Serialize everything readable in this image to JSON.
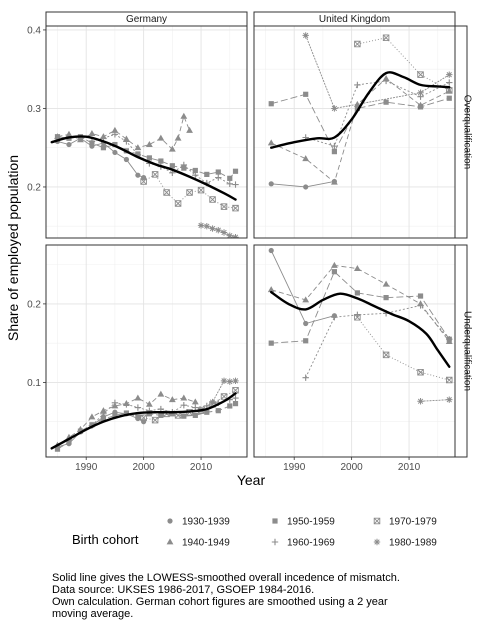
{
  "chart_data": {
    "type": "line",
    "facets": {
      "columns": [
        "Germany",
        "United Kingdom"
      ],
      "rows": [
        "Overqualification",
        "Underqualification"
      ]
    },
    "xlabel": "Year",
    "ylabel": "Share of employed population",
    "xlim": [
      1983,
      2018
    ],
    "x_ticks": [
      1990,
      2000,
      2010
    ],
    "y_ticks_top": [
      0.2,
      0.3,
      0.4
    ],
    "y_ticks_bottom": [
      0.1,
      0.2
    ],
    "ylim_top": [
      0.135,
      0.405
    ],
    "ylim_bottom": [
      0.005,
      0.275
    ],
    "legend": {
      "title": "Birth cohort",
      "placement": "bottom",
      "entries": [
        {
          "label": "1930-1939",
          "shape": "circle"
        },
        {
          "label": "1940-1949",
          "shape": "triangle"
        },
        {
          "label": "1950-1959",
          "shape": "square"
        },
        {
          "label": "1960-1969",
          "shape": "plus"
        },
        {
          "label": "1970-1979",
          "shape": "boxed-x"
        },
        {
          "label": "1980-1989",
          "shape": "asterisk"
        }
      ]
    },
    "panels": [
      {
        "country": "Germany",
        "measure": "Overqualification",
        "lowess": {
          "x": [
            1984,
            1987,
            1990,
            1993,
            1996,
            1999,
            2002,
            2005,
            2008,
            2011,
            2014,
            2016
          ],
          "y": [
            0.257,
            0.263,
            0.264,
            0.258,
            0.249,
            0.238,
            0.229,
            0.222,
            0.213,
            0.203,
            0.192,
            0.184
          ]
        },
        "cohorts": [
          {
            "label": "1930-1939",
            "x": [
              1985,
              1987,
              1989,
              1991,
              1993,
              1995,
              1997,
              1999,
              2000
            ],
            "y": [
              0.258,
              0.254,
              0.262,
              0.252,
              0.256,
              0.244,
              0.235,
              0.215,
              0.212
            ]
          },
          {
            "label": "1940-1949",
            "x": [
              1985,
              1987,
              1989,
              1991,
              1993,
              1995,
              1997,
              1999,
              2001,
              2003,
              2005,
              2006,
              2007,
              2008
            ],
            "y": [
              0.264,
              0.267,
              0.26,
              0.268,
              0.264,
              0.272,
              0.261,
              0.25,
              0.254,
              0.262,
              0.248,
              0.262,
              0.29,
              0.272
            ]
          },
          {
            "label": "1950-1959",
            "x": [
              1985,
              1987,
              1989,
              1991,
              1993,
              1995,
              1997,
              1999,
              2001,
              2003,
              2005,
              2007,
              2009,
              2011,
              2013,
              2015,
              2016
            ],
            "y": [
              0.264,
              0.262,
              0.264,
              0.256,
              0.25,
              0.254,
              0.246,
              0.242,
              0.237,
              0.233,
              0.227,
              0.224,
              0.221,
              0.216,
              0.219,
              0.211,
              0.22
            ]
          },
          {
            "label": "1960-1969",
            "x": [
              1991,
              1993,
              1995,
              1997,
              1999,
              2001,
              2003,
              2005,
              2007,
              2009,
              2011,
              2013,
              2015,
              2016
            ],
            "y": [
              0.258,
              0.262,
              0.267,
              0.258,
              0.241,
              0.23,
              0.226,
              0.218,
              0.228,
              0.215,
              0.205,
              0.212,
              0.204,
              0.203
            ]
          },
          {
            "label": "1970-1979",
            "x": [
              2000,
              2002,
              2004,
              2006,
              2008,
              2010,
              2012,
              2014,
              2016
            ],
            "y": [
              0.207,
              0.216,
              0.193,
              0.179,
              0.193,
              0.196,
              0.184,
              0.175,
              0.173
            ]
          },
          {
            "label": "1980-1989",
            "x": [
              2010,
              2011,
              2012,
              2013,
              2014,
              2015,
              2016
            ],
            "y": [
              0.151,
              0.15,
              0.147,
              0.145,
              0.142,
              0.138,
              0.136
            ]
          }
        ]
      },
      {
        "country": "United Kingdom",
        "measure": "Overqualification",
        "lowess": {
          "x": [
            1986,
            1990,
            1994,
            1997,
            2000,
            2003,
            2006,
            2009,
            2012,
            2015,
            2017
          ],
          "y": [
            0.25,
            0.257,
            0.262,
            0.263,
            0.286,
            0.32,
            0.345,
            0.34,
            0.33,
            0.328,
            0.327
          ]
        },
        "cohorts": [
          {
            "label": "1930-1939",
            "x": [
              1986,
              1992,
              1997
            ],
            "y": [
              0.204,
              0.2,
              0.207
            ]
          },
          {
            "label": "1940-1949",
            "x": [
              1986,
              1992,
              1997,
              2001,
              2006,
              2012,
              2017
            ],
            "y": [
              0.256,
              0.236,
              0.206,
              0.305,
              0.338,
              0.304,
              0.322
            ]
          },
          {
            "label": "1950-1959",
            "x": [
              1986,
              1992,
              1997,
              2001,
              2006,
              2012,
              2017
            ],
            "y": [
              0.306,
              0.318,
              0.245,
              0.3,
              0.308,
              0.302,
              0.313
            ]
          },
          {
            "label": "1960-1969",
            "x": [
              1992,
              1997,
              2001,
              2006,
              2012,
              2017
            ],
            "y": [
              0.263,
              0.252,
              0.33,
              0.335,
              0.315,
              0.333
            ]
          },
          {
            "label": "1970-1979",
            "x": [
              2001,
              2006,
              2012,
              2017
            ],
            "y": [
              0.382,
              0.39,
              0.343,
              0.323
            ]
          },
          {
            "label": "1980-1989",
            "x": [
              1992,
              1997,
              2012,
              2017
            ],
            "y": [
              0.393,
              0.3,
              0.32,
              0.343
            ]
          }
        ]
      },
      {
        "country": "Germany",
        "measure": "Underqualification",
        "lowess": {
          "x": [
            1984,
            1987,
            1990,
            1993,
            1996,
            1999,
            2002,
            2005,
            2008,
            2011,
            2014,
            2016
          ],
          "y": [
            0.016,
            0.028,
            0.04,
            0.05,
            0.057,
            0.061,
            0.062,
            0.062,
            0.063,
            0.066,
            0.076,
            0.086
          ]
        },
        "cohorts": [
          {
            "label": "1930-1939",
            "x": [
              1985,
              1987,
              1989,
              1991,
              1993,
              1995,
              1997,
              1999,
              2000
            ],
            "y": [
              0.018,
              0.022,
              0.037,
              0.045,
              0.056,
              0.062,
              0.06,
              0.054,
              0.05
            ]
          },
          {
            "label": "1940-1949",
            "x": [
              1985,
              1987,
              1989,
              1991,
              1993,
              1995,
              1997,
              1999,
              2001,
              2003,
              2005,
              2007,
              2009
            ],
            "y": [
              0.02,
              0.03,
              0.04,
              0.056,
              0.064,
              0.07,
              0.073,
              0.08,
              0.072,
              0.085,
              0.078,
              0.08,
              0.075
            ]
          },
          {
            "label": "1950-1959",
            "x": [
              1985,
              1987,
              1989,
              1991,
              1993,
              1995,
              1997,
              1999,
              2001,
              2003,
              2005,
              2007,
              2009,
              2011,
              2013,
              2015,
              2016
            ],
            "y": [
              0.015,
              0.024,
              0.038,
              0.046,
              0.053,
              0.058,
              0.061,
              0.056,
              0.06,
              0.058,
              0.06,
              0.057,
              0.058,
              0.062,
              0.064,
              0.07,
              0.073
            ]
          },
          {
            "label": "1960-1969",
            "x": [
              1991,
              1993,
              1995,
              1997,
              1999,
              2001,
              2003,
              2005,
              2007,
              2009,
              2011,
              2013,
              2015,
              2016
            ],
            "y": [
              0.045,
              0.06,
              0.074,
              0.072,
              0.068,
              0.064,
              0.066,
              0.062,
              0.071,
              0.068,
              0.07,
              0.074,
              0.078,
              0.08
            ]
          },
          {
            "label": "1970-1979",
            "x": [
              2000,
              2002,
              2004,
              2006,
              2008,
              2010,
              2012,
              2014,
              2016
            ],
            "y": [
              0.055,
              0.052,
              0.06,
              0.058,
              0.062,
              0.064,
              0.072,
              0.082,
              0.09
            ]
          },
          {
            "label": "1980-1989",
            "x": [
              2010,
              2012,
              2014,
              2015,
              2016
            ],
            "y": [
              0.065,
              0.075,
              0.102,
              0.101,
              0.102
            ]
          }
        ]
      },
      {
        "country": "United Kingdom",
        "measure": "Underqualification",
        "lowess": {
          "x": [
            1986,
            1989,
            1992,
            1995,
            1998,
            2001,
            2004,
            2007,
            2010,
            2013,
            2015,
            2017
          ],
          "y": [
            0.215,
            0.2,
            0.193,
            0.205,
            0.213,
            0.207,
            0.197,
            0.187,
            0.178,
            0.162,
            0.141,
            0.12
          ]
        },
        "cohorts": [
          {
            "label": "1930-1939",
            "x": [
              1986,
              1992,
              1997
            ],
            "y": [
              0.268,
              0.175,
              0.185
            ]
          },
          {
            "label": "1940-1949",
            "x": [
              1986,
              1992,
              1997,
              2001,
              2006,
              2012,
              2017
            ],
            "y": [
              0.218,
              0.205,
              0.249,
              0.245,
              0.225,
              0.2,
              0.152
            ]
          },
          {
            "label": "1950-1959",
            "x": [
              1986,
              1992,
              1997,
              2001,
              2006,
              2012,
              2017
            ],
            "y": [
              0.15,
              0.153,
              0.241,
              0.214,
              0.208,
              0.21,
              0.155
            ]
          },
          {
            "label": "1960-1969",
            "x": [
              1992,
              1997,
              2001,
              2006,
              2012,
              2017
            ],
            "y": [
              0.106,
              0.183,
              0.186,
              0.188,
              0.198,
              0.155
            ]
          },
          {
            "label": "1970-1979",
            "x": [
              2001,
              2006,
              2012,
              2017
            ],
            "y": [
              0.183,
              0.135,
              0.113,
              0.103
            ]
          },
          {
            "label": "1980-1989",
            "x": [
              2012,
              2017
            ],
            "y": [
              0.076,
              0.078
            ]
          }
        ]
      }
    ]
  },
  "caption": {
    "lines": [
      "Solid line gives the LOWESS-smoothed overall incedence of mismatch.",
      "Data source: UKSES 1986-2017, GSOEP 1984-2016.",
      "Own calculation. German cohort figures are smoothed using a 2 year",
      "moving average."
    ]
  }
}
